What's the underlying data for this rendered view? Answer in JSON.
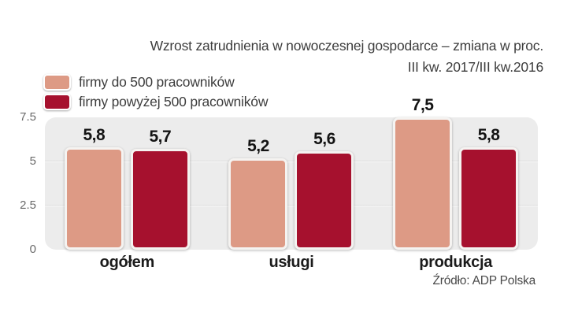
{
  "title": "Wzrost zatrudnienia w nowoczesnej gospodarce – zmiana w proc.",
  "subtitle": "III kw. 2017/III kw.2016",
  "source": "Źródło: ADP Polska",
  "colors": {
    "series_small_firms": "#DD9A85",
    "series_large_firms": "#A6112E",
    "plot_background": "#ECECEC"
  },
  "chart_data": {
    "type": "bar",
    "title": "Wzrost zatrudnienia w nowoczesnej gospodarce – zmiana w proc.",
    "subtitle": "III kw. 2017/III kw.2016",
    "categories": [
      "ogółem",
      "usługi",
      "produkcja"
    ],
    "series": [
      {
        "name": "firmy do 500 pracowników",
        "color": "#DD9A85",
        "values": [
          5.8,
          5.2,
          7.5
        ]
      },
      {
        "name": "firmy powyżej 500 pracowników",
        "color": "#A6112E",
        "values": [
          5.7,
          5.6,
          5.8
        ]
      }
    ],
    "xlabel": "",
    "ylabel": "",
    "ylim": [
      0,
      7.5
    ],
    "y_ticks": [
      0,
      2.5,
      5,
      7.5
    ],
    "decimal_separator": ",",
    "grid": "horizontal",
    "legend_position": "top-left",
    "source": "Źródło: ADP Polska"
  }
}
